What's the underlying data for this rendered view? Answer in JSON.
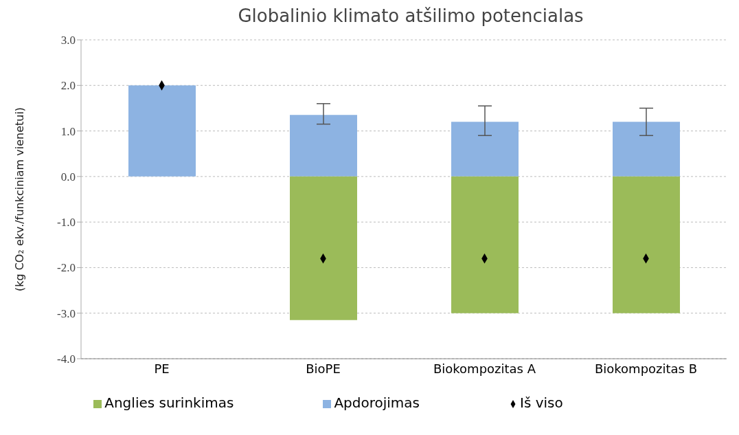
{
  "chart_data": {
    "type": "bar",
    "title": "Globalinio klimato atšilimo potencialas",
    "ylabel": "(kg CO₂ ekv./funkciniam vienetui)",
    "categories": [
      "PE",
      "BioPE",
      "Biokompozitas A",
      "Biokompozitas B"
    ],
    "stacked": true,
    "series": [
      {
        "name": "Apdorojimas",
        "color": "#8db3e2",
        "values": [
          2.0,
          1.35,
          1.2,
          1.2
        ],
        "errors": [
          null,
          [
            1.15,
            1.6
          ],
          [
            0.9,
            1.55
          ],
          [
            0.9,
            1.5
          ]
        ]
      },
      {
        "name": "Anglies surinkimas",
        "color": "#9bbb59",
        "values": [
          null,
          -3.15,
          -3.0,
          -3.0
        ]
      },
      {
        "name": "Iš viso",
        "type": "scatter",
        "color": "#000000",
        "x": [
          "PE",
          "BioPE",
          "Biokompozitas A",
          "Biokompozitas B"
        ],
        "values": [
          2.0,
          -1.8,
          -1.8,
          -1.8
        ]
      }
    ],
    "ylim": [
      -4,
      3
    ],
    "yticks": [
      {
        "value": -4,
        "label": "-4.0"
      },
      {
        "value": -3,
        "label": "-3.0"
      },
      {
        "value": -2,
        "label": "-2.0"
      },
      {
        "value": -1,
        "label": "-1.0"
      },
      {
        "value": 0,
        "label": "0.0"
      },
      {
        "value": 1,
        "label": "1.0"
      },
      {
        "value": 2,
        "label": "2.0"
      },
      {
        "value": 3,
        "label": "3.0"
      }
    ],
    "grid": "y",
    "legend": "bottom",
    "marker": "diamond"
  }
}
